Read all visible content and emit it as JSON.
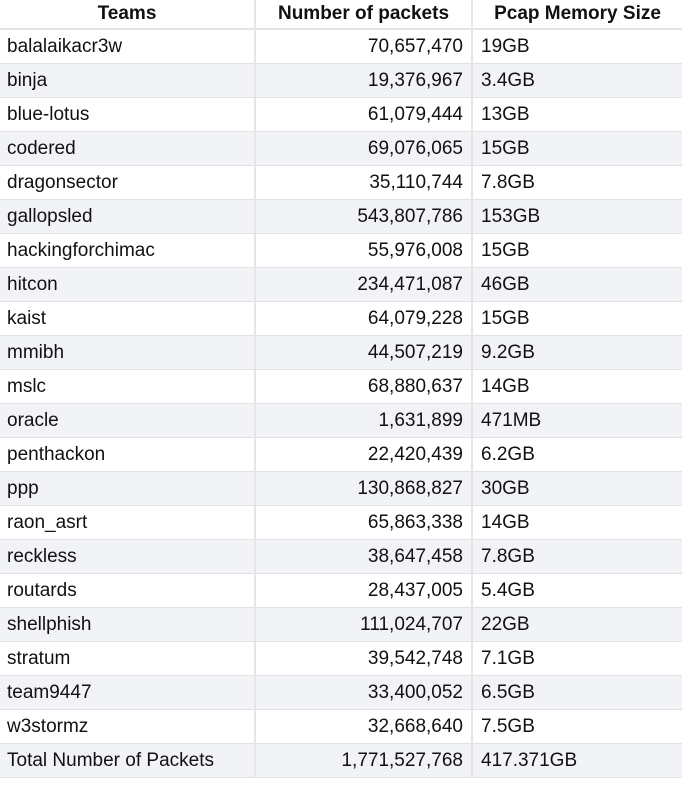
{
  "table": {
    "headers": [
      "Teams",
      "Number of packets",
      "Pcap Memory Size"
    ],
    "rows": [
      [
        "balalaikacr3w",
        "70,657,470",
        "19GB"
      ],
      [
        "binja",
        "19,376,967",
        "3.4GB"
      ],
      [
        "blue-lotus",
        "61,079,444",
        "13GB"
      ],
      [
        "codered",
        "69,076,065",
        "15GB"
      ],
      [
        "dragonsector",
        "35,110,744",
        "7.8GB"
      ],
      [
        "gallopsled",
        "543,807,786",
        "153GB"
      ],
      [
        "hackingforchimac",
        "55,976,008",
        "15GB"
      ],
      [
        "hitcon",
        "234,471,087",
        "46GB"
      ],
      [
        "kaist",
        "64,079,228",
        "15GB"
      ],
      [
        "mmibh",
        "44,507,219",
        "9.2GB"
      ],
      [
        "mslc",
        "68,880,637",
        "14GB"
      ],
      [
        "oracle",
        "1,631,899",
        "471MB"
      ],
      [
        "penthackon",
        "22,420,439",
        "6.2GB"
      ],
      [
        "ppp",
        "130,868,827",
        "30GB"
      ],
      [
        "raon_asrt",
        "65,863,338",
        "14GB"
      ],
      [
        "reckless",
        "38,647,458",
        "7.8GB"
      ],
      [
        "routards",
        "28,437,005",
        "5.4GB"
      ],
      [
        "shellphish",
        "111,024,707",
        "22GB"
      ],
      [
        "stratum",
        "39,542,748",
        "7.1GB"
      ],
      [
        "team9447",
        "33,400,052",
        "6.5GB"
      ],
      [
        "w3stormz",
        "32,668,640",
        "7.5GB"
      ],
      [
        "Total Number of Packets",
        "1,771,527,768",
        "417.371GB"
      ]
    ]
  }
}
